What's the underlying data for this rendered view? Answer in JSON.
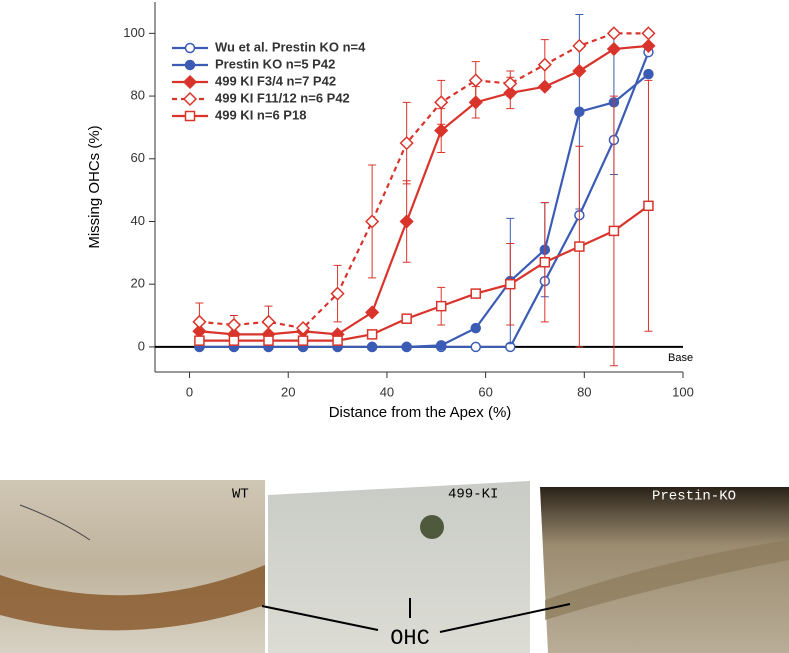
{
  "chart_data": {
    "type": "line",
    "x_label": "Distance from the Apex (%)",
    "y_label": "Missing OHCs (%)",
    "annotation": "Base",
    "x": [
      2,
      9,
      16,
      23,
      30,
      37,
      44,
      51,
      58,
      65,
      72,
      79,
      86,
      93
    ],
    "xlim": [
      -7,
      100
    ],
    "xticks": [
      0,
      20,
      40,
      60,
      80,
      100
    ],
    "ylim": [
      -8,
      110
    ],
    "yticks": [
      0,
      20,
      40,
      60,
      80,
      100
    ],
    "series": [
      {
        "name": "Wu et al. Prestin KO n=4",
        "color": "#3b5bb5",
        "marker": "open-circle",
        "dashed": false,
        "values": [
          0,
          0,
          0,
          0,
          0,
          0,
          0,
          0,
          0,
          0,
          21,
          42,
          66,
          94
        ]
      },
      {
        "name": "Prestin KO n=5 P42",
        "color": "#3b5bb5",
        "marker": "filled-circle",
        "dashed": false,
        "values": [
          0,
          0,
          0,
          0,
          0,
          0,
          0,
          0.5,
          6,
          21,
          31,
          75,
          78,
          87
        ],
        "errors": [
          0,
          0,
          0,
          0,
          0,
          0,
          0,
          0,
          0,
          20,
          15,
          31,
          23,
          0
        ]
      },
      {
        "name": "499 KI F3/4 n=7 P42",
        "color": "#d9342b",
        "marker": "filled-diamond",
        "dashed": false,
        "values": [
          5,
          4,
          4,
          5,
          4,
          11,
          40,
          69,
          78,
          81,
          83,
          88,
          95,
          96
        ],
        "errors": [
          0,
          0,
          0,
          0,
          0,
          0,
          13,
          7,
          5,
          5,
          0,
          0,
          0,
          0
        ]
      },
      {
        "name": "499 KI F11/12 n=6 P42",
        "color": "#d9342b",
        "marker": "open-diamond",
        "dashed": true,
        "values": [
          8,
          7,
          8,
          6,
          17,
          40,
          65,
          78,
          85,
          84,
          90,
          96,
          100,
          100
        ],
        "errors": [
          6,
          3,
          5,
          0,
          9,
          18,
          13,
          7,
          6,
          4,
          8,
          0,
          0,
          0
        ]
      },
      {
        "name": "499 KI n=6 P18",
        "color": "#d9342b",
        "marker": "open-square",
        "dashed": false,
        "values": [
          2,
          2,
          2,
          2,
          2,
          4,
          9,
          13,
          17,
          20,
          27,
          32,
          37,
          45
        ],
        "errors": [
          0,
          0,
          0,
          0,
          0,
          0,
          0,
          6,
          0,
          13,
          19,
          32,
          43,
          40
        ]
      }
    ]
  },
  "panels": [
    {
      "label": "WT"
    },
    {
      "label": "499-KI"
    },
    {
      "label": "Prestin-KO"
    }
  ],
  "cell_label": "OHC"
}
